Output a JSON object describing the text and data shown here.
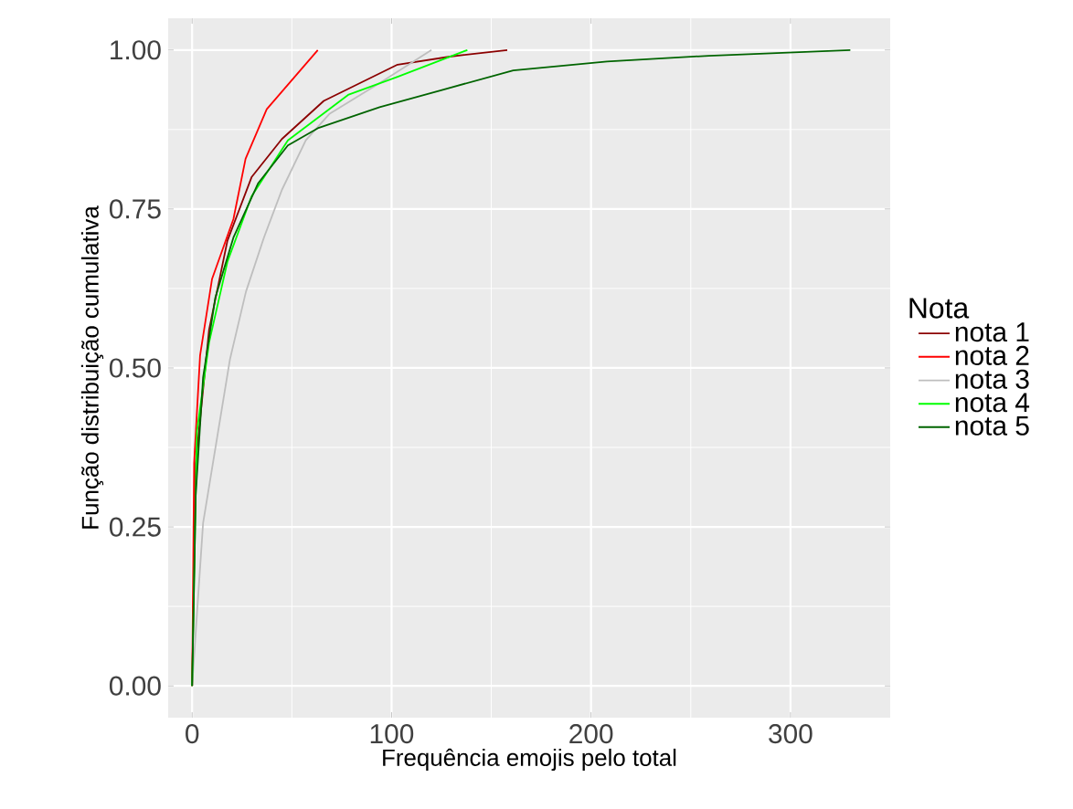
{
  "chart_data": {
    "type": "line",
    "xlabel": "Frequência emojis pelo total",
    "ylabel": "Função distribuição cumulativa",
    "legend_title": "Nota",
    "legend": "right",
    "grid": true,
    "marker": "none",
    "line_style": "solid",
    "xlim": [
      -12,
      350
    ],
    "ylim": [
      -0.05,
      1.05
    ],
    "xticks": [
      0,
      100,
      200,
      300
    ],
    "yticks": [
      {
        "value": 0,
        "label": "0.00"
      },
      {
        "value": 0.25,
        "label": "0.25"
      },
      {
        "value": 0.5,
        "label": "0.50"
      },
      {
        "value": 0.75,
        "label": "0.75"
      },
      {
        "value": 1,
        "label": "1.00"
      }
    ],
    "series": [
      {
        "name": "nota 1",
        "color": "#8b0000",
        "x": [
          0,
          1.8,
          8.5,
          17.7,
          29.8,
          45,
          66,
          103,
          130,
          158
        ],
        "values": [
          0,
          0.35,
          0.56,
          0.7,
          0.8,
          0.86,
          0.92,
          0.977,
          0.99,
          1.0
        ]
      },
      {
        "name": "nota 2",
        "color": "#ff0000",
        "x": [
          0,
          1,
          4,
          10,
          20.7,
          26.8,
          37.4,
          63
        ],
        "values": [
          0,
          0.35,
          0.52,
          0.64,
          0.734,
          0.829,
          0.907,
          1.0
        ]
      },
      {
        "name": "nota 3",
        "color": "#bebebe",
        "x": [
          0,
          5.5,
          19,
          27,
          36,
          45,
          57,
          69,
          94,
          120
        ],
        "values": [
          0,
          0.256,
          0.514,
          0.62,
          0.705,
          0.78,
          0.858,
          0.9,
          0.948,
          1.0
        ]
      },
      {
        "name": "nota 4",
        "color": "#00ff00",
        "x": [
          0,
          2.4,
          8.5,
          17.7,
          29.8,
          48,
          78.5,
          103,
          138
        ],
        "values": [
          0,
          0.4,
          0.54,
          0.667,
          0.77,
          0.858,
          0.93,
          0.958,
          1.0
        ]
      },
      {
        "name": "nota 5",
        "color": "#006400",
        "x": [
          0,
          1.8,
          5.5,
          11.6,
          20.7,
          33,
          48,
          63,
          94,
          124,
          161,
          208,
          259,
          330
        ],
        "values": [
          0,
          0.3,
          0.485,
          0.61,
          0.705,
          0.79,
          0.85,
          0.877,
          0.91,
          0.936,
          0.968,
          0.982,
          0.991,
          1.0
        ]
      }
    ]
  }
}
